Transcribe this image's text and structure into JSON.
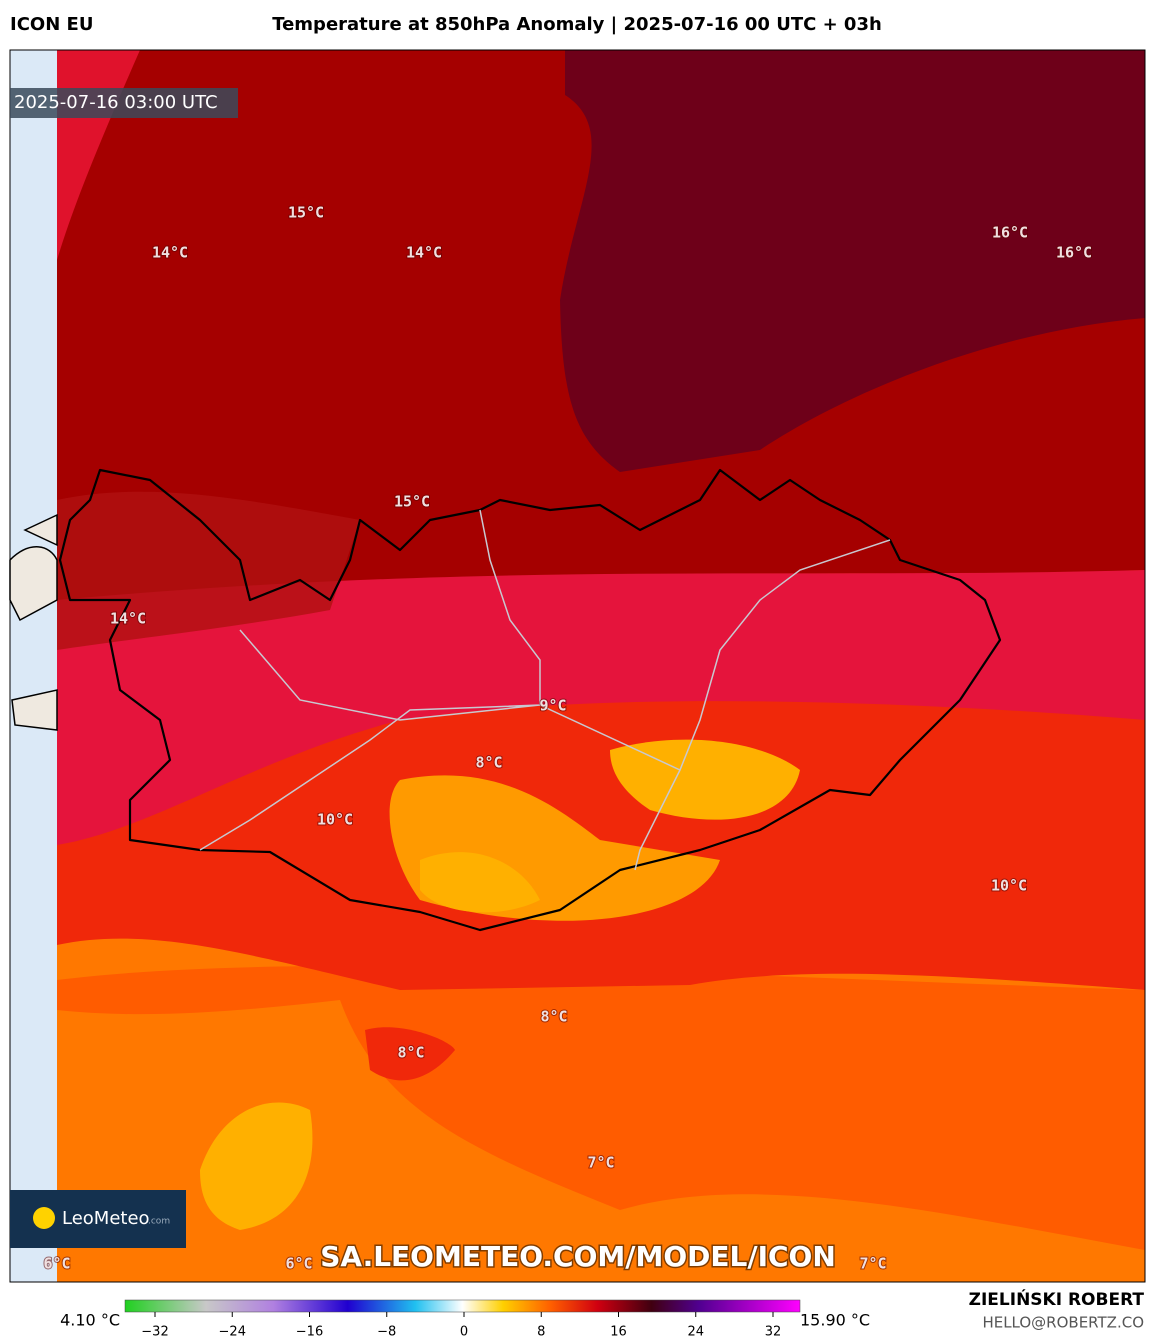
{
  "header": {
    "model": "ICON EU",
    "title": "Temperature at 850hPa Anomaly | 2025-07-16 00 UTC + 03h"
  },
  "map": {
    "timestamp": "2025-07-16 03:00 UTC",
    "contour_labels": [
      "15°C",
      "14°C",
      "14°C",
      "16°C",
      "16°C",
      "15°C",
      "14°C",
      "9°C",
      "8°C",
      "10°C",
      "10°C",
      "8°C",
      "8°C",
      "7°C",
      "6°C",
      "6°C",
      "7°C"
    ],
    "logo": {
      "name": "LeoMeteo",
      "suffix": ".com"
    },
    "watermark": "SA.LEOMETEO.COM/MODEL/ICON"
  },
  "colorbar": {
    "min_label": "4.10 °C",
    "max_label": "15.90 °C",
    "ticks": [
      {
        "value": -32,
        "label": "−32"
      },
      {
        "value": -24,
        "label": "−24"
      },
      {
        "value": -16,
        "label": "−16"
      },
      {
        "value": -8,
        "label": "−8"
      },
      0,
      8,
      16,
      24,
      32
    ]
  },
  "footer": {
    "author": "ZIELIŃSKI ROBERT",
    "email": "HELLO@ROBERTZ.CO"
  }
}
